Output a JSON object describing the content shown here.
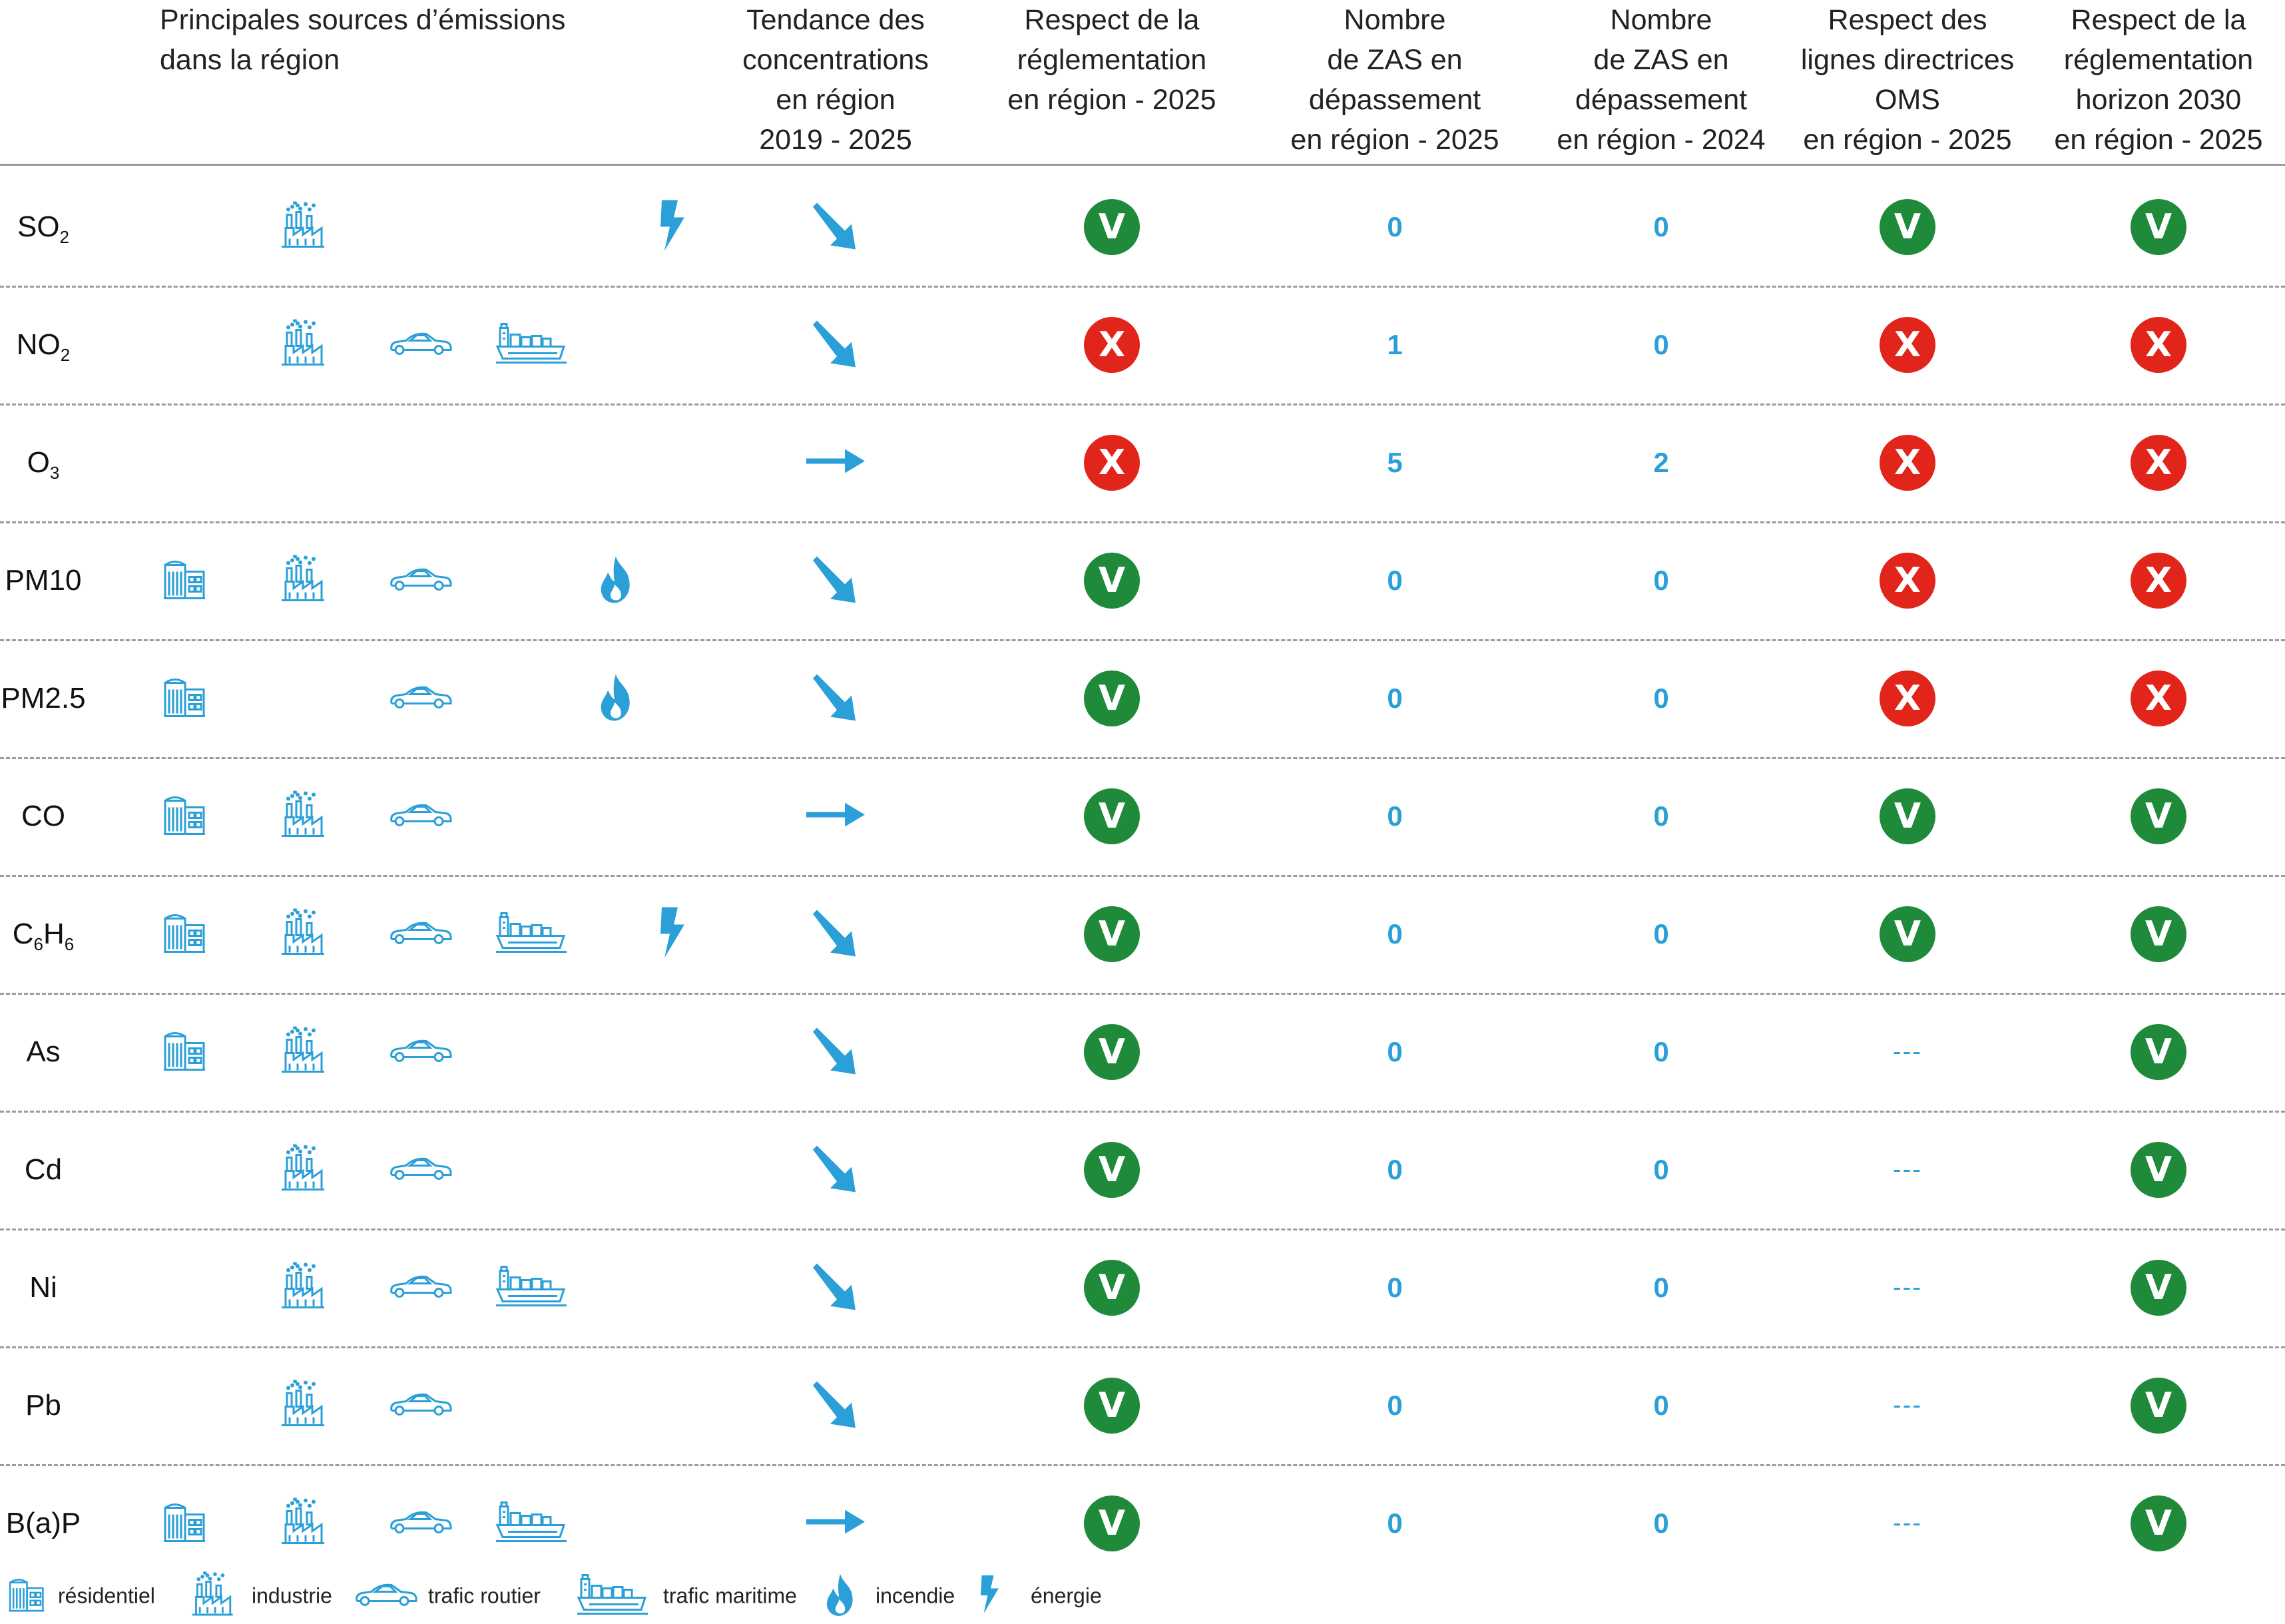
{
  "headers": {
    "sources": [
      "Principales sources d’émissions",
      "dans la région"
    ],
    "tendance": [
      "Tendance des",
      "concentrations",
      "en région",
      "2019 - 2025"
    ],
    "reglementation": [
      "Respect de la",
      "réglementation",
      "en région - 2025"
    ],
    "zas2025": [
      "Nombre",
      "de ZAS en",
      "dépassement",
      "en région - 2025"
    ],
    "zas2024": [
      "Nombre",
      "de ZAS en",
      "dépassement",
      "en région - 2024"
    ],
    "oms": [
      "Respect des",
      "lignes directrices",
      "OMS",
      "en région - 2025"
    ],
    "horizon2030": [
      "Respect de la",
      "réglementation",
      "horizon 2030",
      "en région - 2025"
    ]
  },
  "colors": {
    "accent": "#2a9fd8",
    "ok": "#1e8a3a",
    "fail": "#e1251b"
  },
  "rows": [
    {
      "name": "SO",
      "sub": "2",
      "tail": "",
      "sources": {
        "residentiel": false,
        "industrie": true,
        "routier": false,
        "maritime": false,
        "incendie": false,
        "energie": true
      },
      "trend": "down",
      "reg": "V",
      "zas2025": "0",
      "zas2024": "0",
      "oms": "V",
      "h2030": "V"
    },
    {
      "name": "NO",
      "sub": "2",
      "tail": "",
      "sources": {
        "residentiel": false,
        "industrie": true,
        "routier": true,
        "maritime": true,
        "incendie": false,
        "energie": false
      },
      "trend": "down",
      "reg": "X",
      "zas2025": "1",
      "zas2024": "0",
      "oms": "X",
      "h2030": "X"
    },
    {
      "name": "O",
      "sub": "3",
      "tail": "",
      "sources": {
        "residentiel": false,
        "industrie": false,
        "routier": false,
        "maritime": false,
        "incendie": false,
        "energie": false
      },
      "trend": "flat",
      "reg": "X",
      "zas2025": "5",
      "zas2024": "2",
      "oms": "X",
      "h2030": "X"
    },
    {
      "name": "PM10",
      "sub": "",
      "tail": "",
      "sources": {
        "residentiel": true,
        "industrie": true,
        "routier": true,
        "maritime": false,
        "incendie": true,
        "energie": false
      },
      "trend": "down",
      "reg": "V",
      "zas2025": "0",
      "zas2024": "0",
      "oms": "X",
      "h2030": "X"
    },
    {
      "name": "PM2.5",
      "sub": "",
      "tail": "",
      "sources": {
        "residentiel": true,
        "industrie": false,
        "routier": true,
        "maritime": false,
        "incendie": true,
        "energie": false
      },
      "trend": "down",
      "reg": "V",
      "zas2025": "0",
      "zas2024": "0",
      "oms": "X",
      "h2030": "X"
    },
    {
      "name": "CO",
      "sub": "",
      "tail": "",
      "sources": {
        "residentiel": true,
        "industrie": true,
        "routier": true,
        "maritime": false,
        "incendie": false,
        "energie": false
      },
      "trend": "flat",
      "reg": "V",
      "zas2025": "0",
      "zas2024": "0",
      "oms": "V",
      "h2030": "V"
    },
    {
      "name": "C",
      "sub": "6",
      "tail": "H",
      "sub2": "6",
      "sources": {
        "residentiel": true,
        "industrie": true,
        "routier": true,
        "maritime": true,
        "incendie": false,
        "energie": true
      },
      "trend": "down",
      "reg": "V",
      "zas2025": "0",
      "zas2024": "0",
      "oms": "V",
      "h2030": "V"
    },
    {
      "name": "As",
      "sub": "",
      "tail": "",
      "sources": {
        "residentiel": true,
        "industrie": true,
        "routier": true,
        "maritime": false,
        "incendie": false,
        "energie": false
      },
      "trend": "down",
      "reg": "V",
      "zas2025": "0",
      "zas2024": "0",
      "oms": "---",
      "h2030": "V"
    },
    {
      "name": "Cd",
      "sub": "",
      "tail": "",
      "sources": {
        "residentiel": false,
        "industrie": true,
        "routier": true,
        "maritime": false,
        "incendie": false,
        "energie": false
      },
      "trend": "down",
      "reg": "V",
      "zas2025": "0",
      "zas2024": "0",
      "oms": "---",
      "h2030": "V"
    },
    {
      "name": "Ni",
      "sub": "",
      "tail": "",
      "sources": {
        "residentiel": false,
        "industrie": true,
        "routier": true,
        "maritime": true,
        "incendie": false,
        "energie": false
      },
      "trend": "down",
      "reg": "V",
      "zas2025": "0",
      "zas2024": "0",
      "oms": "---",
      "h2030": "V"
    },
    {
      "name": "Pb",
      "sub": "",
      "tail": "",
      "sources": {
        "residentiel": false,
        "industrie": true,
        "routier": true,
        "maritime": false,
        "incendie": false,
        "energie": false
      },
      "trend": "down",
      "reg": "V",
      "zas2025": "0",
      "zas2024": "0",
      "oms": "---",
      "h2030": "V"
    },
    {
      "name": "B(a)P",
      "sub": "",
      "tail": "",
      "sources": {
        "residentiel": true,
        "industrie": true,
        "routier": true,
        "maritime": true,
        "incendie": false,
        "energie": false
      },
      "trend": "flat",
      "reg": "V",
      "zas2025": "0",
      "zas2024": "0",
      "oms": "---",
      "h2030": "V"
    }
  ],
  "legend": [
    {
      "icon": "residentiel",
      "label": "résidentiel"
    },
    {
      "icon": "industrie",
      "label": "industrie"
    },
    {
      "icon": "routier",
      "label": "trafic routier"
    },
    {
      "icon": "maritime",
      "label": "trafic maritime"
    },
    {
      "icon": "incendie",
      "label": "incendie"
    },
    {
      "icon": "energie",
      "label": "énergie"
    }
  ]
}
